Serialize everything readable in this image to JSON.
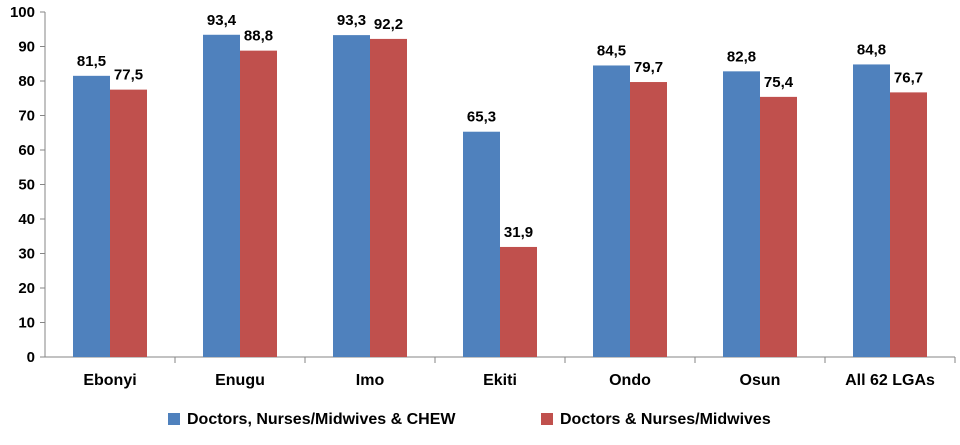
{
  "chart_data": {
    "type": "bar",
    "title": "",
    "xlabel": "",
    "ylabel": "",
    "ylim": [
      0,
      100
    ],
    "yticks": [
      "0",
      "10",
      "20",
      "30",
      "40",
      "50",
      "60",
      "70",
      "80",
      "90",
      "100"
    ],
    "grid": false,
    "legend_position": "bottom",
    "decimal_separator": ",",
    "categories": [
      "Ebonyi",
      "Enugu",
      "Imo",
      "Ekiti",
      "Ondo",
      "Osun",
      "All 62 LGAs"
    ],
    "series": [
      {
        "name": "Doctors, Nurses/Midwives & CHEW",
        "color": "#4F81BD",
        "values": [
          81.5,
          93.4,
          93.3,
          65.3,
          84.5,
          82.8,
          84.8
        ],
        "labels": [
          "81,5",
          "93,4",
          "93,3",
          "65,3",
          "84,5",
          "82,8",
          "84,8"
        ]
      },
      {
        "name": "Doctors & Nurses/Midwives",
        "color": "#C0504D",
        "values": [
          77.5,
          88.8,
          92.2,
          31.9,
          79.7,
          75.4,
          76.7
        ],
        "labels": [
          "77,5",
          "88,8",
          "92,2",
          "31,9",
          "79,7",
          "75,4",
          "76,7"
        ]
      }
    ]
  }
}
